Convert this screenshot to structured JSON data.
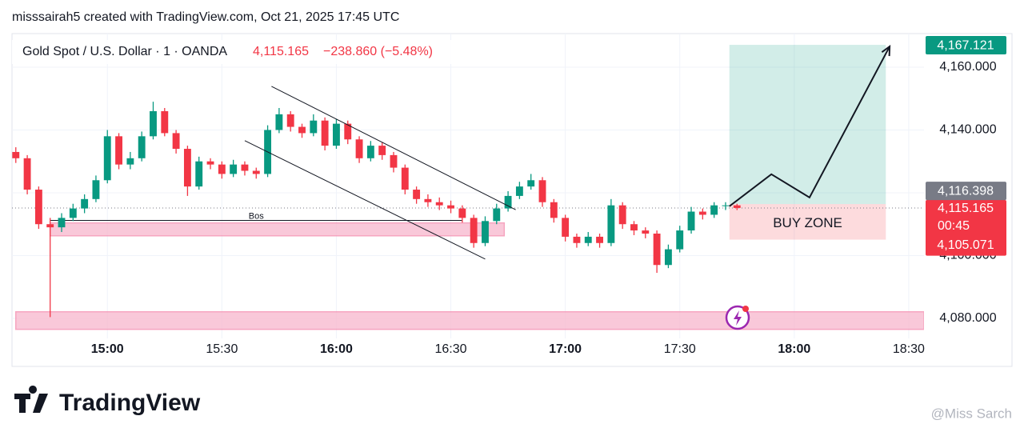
{
  "header": {
    "attribution": "misssairah5 created with TradingView.com, Oct 21, 2025 17:45 UTC",
    "symbol": "Gold Spot / U.S. Dollar · 1 · OANDA",
    "last": "4,115.165",
    "change": "−238.860 (−5.48%)"
  },
  "chart_data": {
    "type": "candlestick",
    "up_color": "#089981",
    "down_color": "#f23645",
    "x": [
      876,
      879,
      882,
      885,
      888,
      891,
      894,
      897,
      900,
      903,
      906,
      909,
      912,
      915,
      918,
      921,
      924,
      927,
      930,
      933,
      936,
      939,
      942,
      945,
      948,
      951,
      954,
      957,
      960,
      963,
      966,
      969,
      972,
      975,
      978,
      981,
      984,
      987,
      990,
      993,
      996,
      999,
      1002,
      1005,
      1008,
      1011,
      1014,
      1017,
      1020,
      1023,
      1026,
      1029,
      1032,
      1035,
      1038,
      1041,
      1044,
      1047,
      1050,
      1053,
      1056,
      1059,
      1062,
      1065
    ],
    "ohlc": [
      [
        4133,
        4134.5,
        4129.5,
        4131
      ],
      [
        4131,
        4132,
        4119.5,
        4121
      ],
      [
        4121,
        4122,
        4108.5,
        4110
      ],
      [
        4110,
        4112,
        4080.4,
        4109
      ],
      [
        4109,
        4113.5,
        4107.5,
        4112
      ],
      [
        4112,
        4116.5,
        4111,
        4115
      ],
      [
        4115,
        4119.5,
        4113.5,
        4118
      ],
      [
        4118,
        4125.5,
        4117,
        4124
      ],
      [
        4124,
        4140,
        4123,
        4138
      ],
      [
        4138,
        4139,
        4127.5,
        4129
      ],
      [
        4129,
        4133,
        4127.5,
        4131
      ],
      [
        4131,
        4139.5,
        4130,
        4138
      ],
      [
        4138,
        4149,
        4137,
        4146
      ],
      [
        4146,
        4147,
        4138,
        4139
      ],
      [
        4139,
        4140,
        4132.5,
        4134
      ],
      [
        4134,
        4135,
        4119,
        4122
      ],
      [
        4122,
        4131.5,
        4121,
        4130
      ],
      [
        4130,
        4131,
        4127.5,
        4129
      ],
      [
        4129,
        4130,
        4124.5,
        4126
      ],
      [
        4126,
        4130.5,
        4125,
        4129
      ],
      [
        4129,
        4130,
        4125.5,
        4127
      ],
      [
        4127,
        4128,
        4124.5,
        4126
      ],
      [
        4126,
        4141.5,
        4125,
        4140
      ],
      [
        4140,
        4147,
        4139,
        4145
      ],
      [
        4145,
        4146,
        4139.5,
        4141
      ],
      [
        4141,
        4142,
        4137.5,
        4139
      ],
      [
        4139,
        4145,
        4138,
        4143
      ],
      [
        4143,
        4144,
        4133.5,
        4135
      ],
      [
        4135,
        4143.5,
        4134,
        4142
      ],
      [
        4142,
        4143,
        4135.5,
        4137
      ],
      [
        4137,
        4138,
        4129.5,
        4131
      ],
      [
        4131,
        4136.5,
        4130,
        4135
      ],
      [
        4135,
        4136,
        4130.5,
        4132
      ],
      [
        4132,
        4133,
        4126.5,
        4128
      ],
      [
        4128,
        4129,
        4119.5,
        4121
      ],
      [
        4121,
        4122,
        4116.5,
        4118
      ],
      [
        4118,
        4119.5,
        4115.5,
        4117
      ],
      [
        4117,
        4118.5,
        4114.5,
        4116
      ],
      [
        4116,
        4117.5,
        4113.5,
        4115
      ],
      [
        4115,
        4116,
        4110.5,
        4112
      ],
      [
        4112,
        4113,
        4102.5,
        4104
      ],
      [
        4104,
        4112.5,
        4103,
        4111
      ],
      [
        4111,
        4116.5,
        4110,
        4115
      ],
      [
        4115,
        4120.5,
        4114,
        4119
      ],
      [
        4119,
        4123.5,
        4118,
        4122
      ],
      [
        4122,
        4126,
        4121,
        4124
      ],
      [
        4124,
        4125,
        4115.5,
        4117
      ],
      [
        4117,
        4118,
        4110.5,
        4112
      ],
      [
        4112,
        4113,
        4104.5,
        4106
      ],
      [
        4106,
        4107,
        4102.5,
        4104
      ],
      [
        4104,
        4107.5,
        4103,
        4106
      ],
      [
        4106,
        4107,
        4102.5,
        4104
      ],
      [
        4104,
        4118,
        4103,
        4116
      ],
      [
        4116,
        4117,
        4108.5,
        4110
      ],
      [
        4110,
        4111,
        4106.5,
        4108
      ],
      [
        4108,
        4109,
        4105.5,
        4107
      ],
      [
        4107,
        4108,
        4094.5,
        4097
      ],
      [
        4097,
        4103.5,
        4096,
        4102
      ],
      [
        4102,
        4109.5,
        4101,
        4108
      ],
      [
        4108,
        4115.5,
        4107,
        4114
      ],
      [
        4114,
        4115,
        4111.5,
        4113
      ],
      [
        4113,
        4117,
        4112,
        4116
      ],
      [
        4116,
        4117,
        4114.5,
        4116
      ],
      [
        4116,
        4116.5,
        4114.5,
        4115.165
      ]
    ],
    "xlim": [
      875,
      1114
    ],
    "xticks": [
      {
        "value": 900,
        "label": "15:00"
      },
      {
        "value": 930,
        "label": "15:30"
      },
      {
        "value": 960,
        "label": "16:00"
      },
      {
        "value": 990,
        "label": "16:30"
      },
      {
        "value": 1020,
        "label": "17:00"
      },
      {
        "value": 1050,
        "label": "17:30"
      },
      {
        "value": 1080,
        "label": "18:00"
      },
      {
        "value": 1110,
        "label": "18:30"
      }
    ],
    "ylim": [
      4064.7,
      4170.7
    ],
    "yticks": [
      {
        "value": 4080,
        "label": "4,080.000"
      },
      {
        "value": 4100,
        "label": "4,100.000"
      },
      {
        "value": 4120,
        "label": "4,120.000"
      },
      {
        "value": 4140,
        "label": "4,140.000"
      },
      {
        "value": 4160,
        "label": "4,160.000"
      }
    ],
    "grid": true,
    "bos": {
      "label": "Bos",
      "t": [
        885,
        993
      ],
      "price": 4111.2
    },
    "zones": [
      {
        "t": [
          885,
          1004
        ],
        "price": [
          4106.3,
          4110.4
        ]
      },
      {
        "t": [
          876,
          1114
        ],
        "price": [
          4076.5,
          4082.1
        ]
      }
    ],
    "channel": [
      {
        "t": [
          943,
          1007
        ],
        "price": [
          4153.9,
          4114.6
        ]
      },
      {
        "t": [
          936,
          999
        ],
        "price": [
          4136.6,
          4098.9
        ]
      }
    ],
    "long_position": {
      "t": [
        1063,
        1104
      ],
      "entry": 4116.398,
      "target": 4167.121,
      "stop": 4105.071,
      "label": "BUY ZONE"
    },
    "projection": {
      "t": [
        1063,
        1074,
        1084,
        1105
      ],
      "price": [
        4115.7,
        4125.9,
        4118.5,
        4166.6
      ]
    },
    "price_tags": [
      {
        "value": 4167.121,
        "label": "4,167.121",
        "color": "#089981"
      },
      {
        "value": 4116.398,
        "label": "4,116.398",
        "color": "#787b86"
      },
      {
        "value": 4115.165,
        "label": "4,115.165",
        "countdown": "00:45",
        "color": "#f23645"
      },
      {
        "value": 4105.071,
        "label": "4,105.071",
        "color": "#f23645"
      }
    ]
  },
  "footer": {
    "logo": "TradingView",
    "watermark": "@Miss Sarch"
  }
}
